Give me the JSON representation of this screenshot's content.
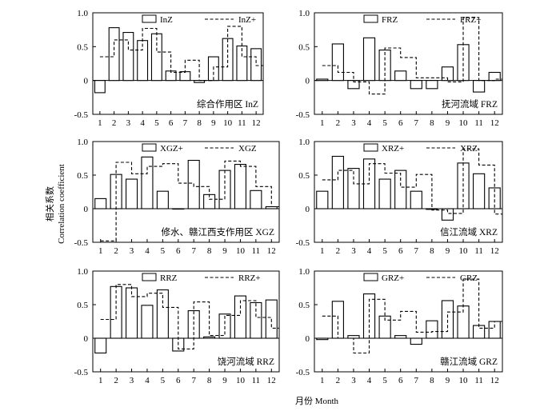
{
  "figure": {
    "xlabel": "月份 Month",
    "ylabel_cn": "相关系数",
    "ylabel_en": "Correlation coefficient"
  },
  "chart_data": [
    {
      "type": "bar",
      "title": "综合作用区 InZ",
      "categories": [
        "1",
        "2",
        "3",
        "4",
        "5",
        "6",
        "7",
        "8",
        "9",
        "10",
        "11",
        "12"
      ],
      "ylim": [
        -0.5,
        1.0
      ],
      "yticks": [
        "1.0",
        "0.5",
        "0",
        "-0.5"
      ],
      "legend": {
        "position": "top",
        "bar_label": "InZ",
        "line_label": "InZ+"
      },
      "series": [
        {
          "name": "InZ",
          "mark": "bar",
          "values": [
            -0.18,
            0.78,
            0.71,
            0.59,
            0.69,
            0.14,
            0.13,
            -0.03,
            0.35,
            0.62,
            0.51,
            0.47
          ]
        },
        {
          "name": "InZ+",
          "mark": "step-dashed",
          "values": [
            0.35,
            0.6,
            0.45,
            0.77,
            0.42,
            0.12,
            0.3,
            0.0,
            0.2,
            0.8,
            0.35,
            0.22
          ]
        }
      ]
    },
    {
      "type": "bar",
      "title": "抚河流域 FRZ",
      "categories": [
        "1",
        "2",
        "3",
        "4",
        "5",
        "6",
        "7",
        "8",
        "9",
        "10",
        "11",
        "12"
      ],
      "ylim": [
        -0.5,
        1.0
      ],
      "yticks": [
        "1.0",
        "0.5",
        "0",
        "-0.5"
      ],
      "legend": {
        "position": "top",
        "bar_label": "FRZ",
        "line_label": "FRZ+"
      },
      "series": [
        {
          "name": "FRZ",
          "mark": "bar",
          "values": [
            0.02,
            0.54,
            -0.12,
            0.63,
            0.45,
            0.14,
            -0.12,
            -0.12,
            0.2,
            0.53,
            -0.17,
            0.12
          ]
        },
        {
          "name": "FRZ+",
          "mark": "step-dashed",
          "values": [
            0.22,
            0.12,
            -0.02,
            -0.2,
            0.48,
            0.34,
            0.04,
            0.04,
            -0.02,
            0.93,
            0.0,
            0.02
          ]
        }
      ]
    },
    {
      "type": "bar",
      "title": "修水、赣江西支作用区 XGZ",
      "categories": [
        "1",
        "2",
        "3",
        "4",
        "5",
        "6",
        "7",
        "8",
        "9",
        "10",
        "11",
        "12"
      ],
      "ylim": [
        -0.5,
        1.0
      ],
      "yticks": [
        "1.0",
        "0.5",
        "0",
        "-0.5"
      ],
      "legend": {
        "position": "top",
        "bar_label": "XGZ+",
        "line_label": "XGZ"
      },
      "series": [
        {
          "name": "XGZ+",
          "mark": "bar",
          "values": [
            0.15,
            0.51,
            0.44,
            0.77,
            0.26,
            0.0,
            0.72,
            0.21,
            0.57,
            0.66,
            0.27,
            0.03
          ]
        },
        {
          "name": "XGZ",
          "mark": "step-dashed",
          "values": [
            -0.48,
            0.69,
            0.52,
            0.63,
            0.67,
            0.38,
            0.33,
            0.14,
            0.71,
            0.63,
            0.33,
            0.03
          ]
        }
      ]
    },
    {
      "type": "bar",
      "title": "信江流域 XRZ",
      "categories": [
        "1",
        "2",
        "3",
        "4",
        "5",
        "6",
        "7",
        "8",
        "9",
        "10",
        "11",
        "12"
      ],
      "ylim": [
        -0.5,
        1.0
      ],
      "yticks": [
        "1.0",
        "0.5",
        "0",
        "-0.5"
      ],
      "legend": {
        "position": "top",
        "bar_label": "XRZ+",
        "line_label": "XRZ"
      },
      "series": [
        {
          "name": "XRZ+",
          "mark": "bar",
          "values": [
            0.26,
            0.78,
            0.6,
            0.74,
            0.44,
            0.57,
            0.26,
            -0.01,
            -0.17,
            0.68,
            0.52,
            0.31
          ]
        },
        {
          "name": "XRZ",
          "mark": "step-dashed",
          "values": [
            0.43,
            0.57,
            0.37,
            0.67,
            0.53,
            0.32,
            0.51,
            -0.02,
            -0.07,
            0.89,
            0.65,
            -0.08
          ]
        }
      ]
    },
    {
      "type": "bar",
      "title": "饶河流域 RRZ",
      "categories": [
        "1",
        "2",
        "3",
        "4",
        "5",
        "6",
        "7",
        "8",
        "9",
        "10",
        "11",
        "12"
      ],
      "ylim": [
        -0.5,
        1.0
      ],
      "yticks": [
        "1.0",
        "0.5",
        "0",
        "-0.5"
      ],
      "legend": {
        "position": "top",
        "bar_label": "RRZ",
        "line_label": "RRZ+"
      },
      "series": [
        {
          "name": "RRZ",
          "mark": "bar",
          "values": [
            -0.22,
            0.77,
            0.75,
            0.49,
            0.72,
            -0.19,
            0.41,
            0.02,
            0.36,
            0.63,
            0.53,
            0.57
          ]
        },
        {
          "name": "RRZ+",
          "mark": "step-dashed",
          "values": [
            0.28,
            0.8,
            0.62,
            0.67,
            0.46,
            -0.16,
            0.54,
            0.04,
            0.34,
            0.56,
            0.31,
            0.15
          ]
        }
      ]
    },
    {
      "type": "bar",
      "title": "赣江流域 GRZ",
      "categories": [
        "1",
        "2",
        "3",
        "4",
        "5",
        "6",
        "7",
        "8",
        "9",
        "10",
        "11",
        "12"
      ],
      "ylim": [
        -0.5,
        1.0
      ],
      "yticks": [
        "1.0",
        "0.5",
        "0",
        "-0.5"
      ],
      "legend": {
        "position": "top",
        "bar_label": "GRZ+",
        "line_label": "GRZ"
      },
      "series": [
        {
          "name": "GRZ+",
          "mark": "bar",
          "values": [
            -0.02,
            0.55,
            0.04,
            0.66,
            0.33,
            0.04,
            -0.09,
            0.26,
            0.56,
            0.48,
            0.19,
            0.25
          ]
        },
        {
          "name": "GRZ",
          "mark": "step-dashed",
          "values": [
            0.33,
            0.0,
            -0.22,
            0.58,
            0.27,
            0.4,
            0.09,
            0.1,
            0.39,
            0.88,
            0.15,
            0.25
          ]
        }
      ]
    }
  ]
}
